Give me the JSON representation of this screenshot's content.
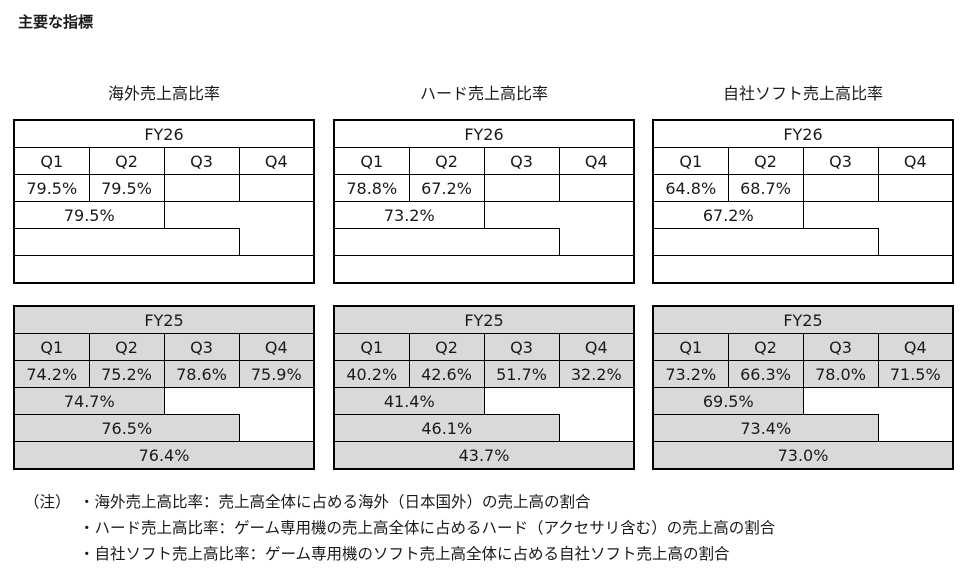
{
  "page_title": "主要な指標",
  "groups": [
    {
      "title": "海外売上高比率",
      "fy26": {
        "label": "FY26",
        "q": [
          "Q1",
          "Q2",
          "Q3",
          "Q4"
        ],
        "vals": [
          "79.5%",
          "79.5%",
          "",
          ""
        ],
        "h1": "79.5%",
        "q3_cum": "",
        "full": ""
      },
      "fy25": {
        "label": "FY25",
        "q": [
          "Q1",
          "Q2",
          "Q3",
          "Q4"
        ],
        "vals": [
          "74.2%",
          "75.2%",
          "78.6%",
          "75.9%"
        ],
        "h1": "74.7%",
        "q3_cum": "76.5%",
        "full": "76.4%"
      }
    },
    {
      "title": "ハード売上高比率",
      "fy26": {
        "label": "FY26",
        "q": [
          "Q1",
          "Q2",
          "Q3",
          "Q4"
        ],
        "vals": [
          "78.8%",
          "67.2%",
          "",
          ""
        ],
        "h1": "73.2%",
        "q3_cum": "",
        "full": ""
      },
      "fy25": {
        "label": "FY25",
        "q": [
          "Q1",
          "Q2",
          "Q3",
          "Q4"
        ],
        "vals": [
          "40.2%",
          "42.6%",
          "51.7%",
          "32.2%"
        ],
        "h1": "41.4%",
        "q3_cum": "46.1%",
        "full": "43.7%"
      }
    },
    {
      "title": "自社ソフト売上高比率",
      "fy26": {
        "label": "FY26",
        "q": [
          "Q1",
          "Q2",
          "Q3",
          "Q4"
        ],
        "vals": [
          "64.8%",
          "68.7%",
          "",
          ""
        ],
        "h1": "67.2%",
        "q3_cum": "",
        "full": ""
      },
      "fy25": {
        "label": "FY25",
        "q": [
          "Q1",
          "Q2",
          "Q3",
          "Q4"
        ],
        "vals": [
          "73.2%",
          "66.3%",
          "78.0%",
          "71.5%"
        ],
        "h1": "69.5%",
        "q3_cum": "73.4%",
        "full": "73.0%"
      }
    }
  ],
  "notes": {
    "prefix": "（注）",
    "lines": [
      "・海外売上高比率：売上高全体に占める海外（日本国外）の売上高の割合",
      "・ハード売上高比率：ゲーム専用機の売上高全体に占めるハード（アクセサリ含む）の売上高の割合",
      "・自社ソフト売上高比率：ゲーム専用機のソフト売上高全体に占める自社ソフト売上高の割合"
    ]
  }
}
